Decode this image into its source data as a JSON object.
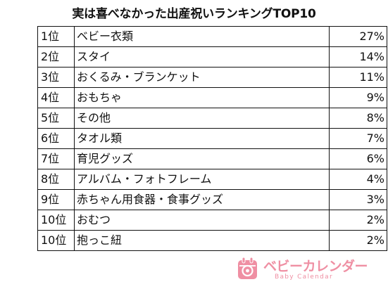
{
  "chart_data": {
    "type": "table",
    "title": "実は喜べなかった出産祝いランキングTOP10",
    "rows": [
      {
        "rank": "1位",
        "item": "ベビー衣類",
        "percent": "27%"
      },
      {
        "rank": "2位",
        "item": "スタイ",
        "percent": "14%"
      },
      {
        "rank": "3位",
        "item": "おくるみ・ブランケット",
        "percent": "11%"
      },
      {
        "rank": "4位",
        "item": "おもちゃ",
        "percent": "9%"
      },
      {
        "rank": "5位",
        "item": "その他",
        "percent": "8%"
      },
      {
        "rank": "6位",
        "item": "タオル類",
        "percent": "7%"
      },
      {
        "rank": "7位",
        "item": "育児グッズ",
        "percent": "6%"
      },
      {
        "rank": "8位",
        "item": "アルバム・フォトフレーム",
        "percent": "4%"
      },
      {
        "rank": "9位",
        "item": "赤ちゃん用食器・食事グッズ",
        "percent": "3%"
      },
      {
        "rank": "10位",
        "item": "おむつ",
        "percent": "2%"
      },
      {
        "rank": "10位",
        "item": "抱っこ紐",
        "percent": "2%"
      }
    ]
  },
  "logo": {
    "name": "ベビーカレンダー",
    "subtitle": "Baby Calendar",
    "icon": "calendar-pacifier-icon",
    "color": "#ef8fa3"
  }
}
